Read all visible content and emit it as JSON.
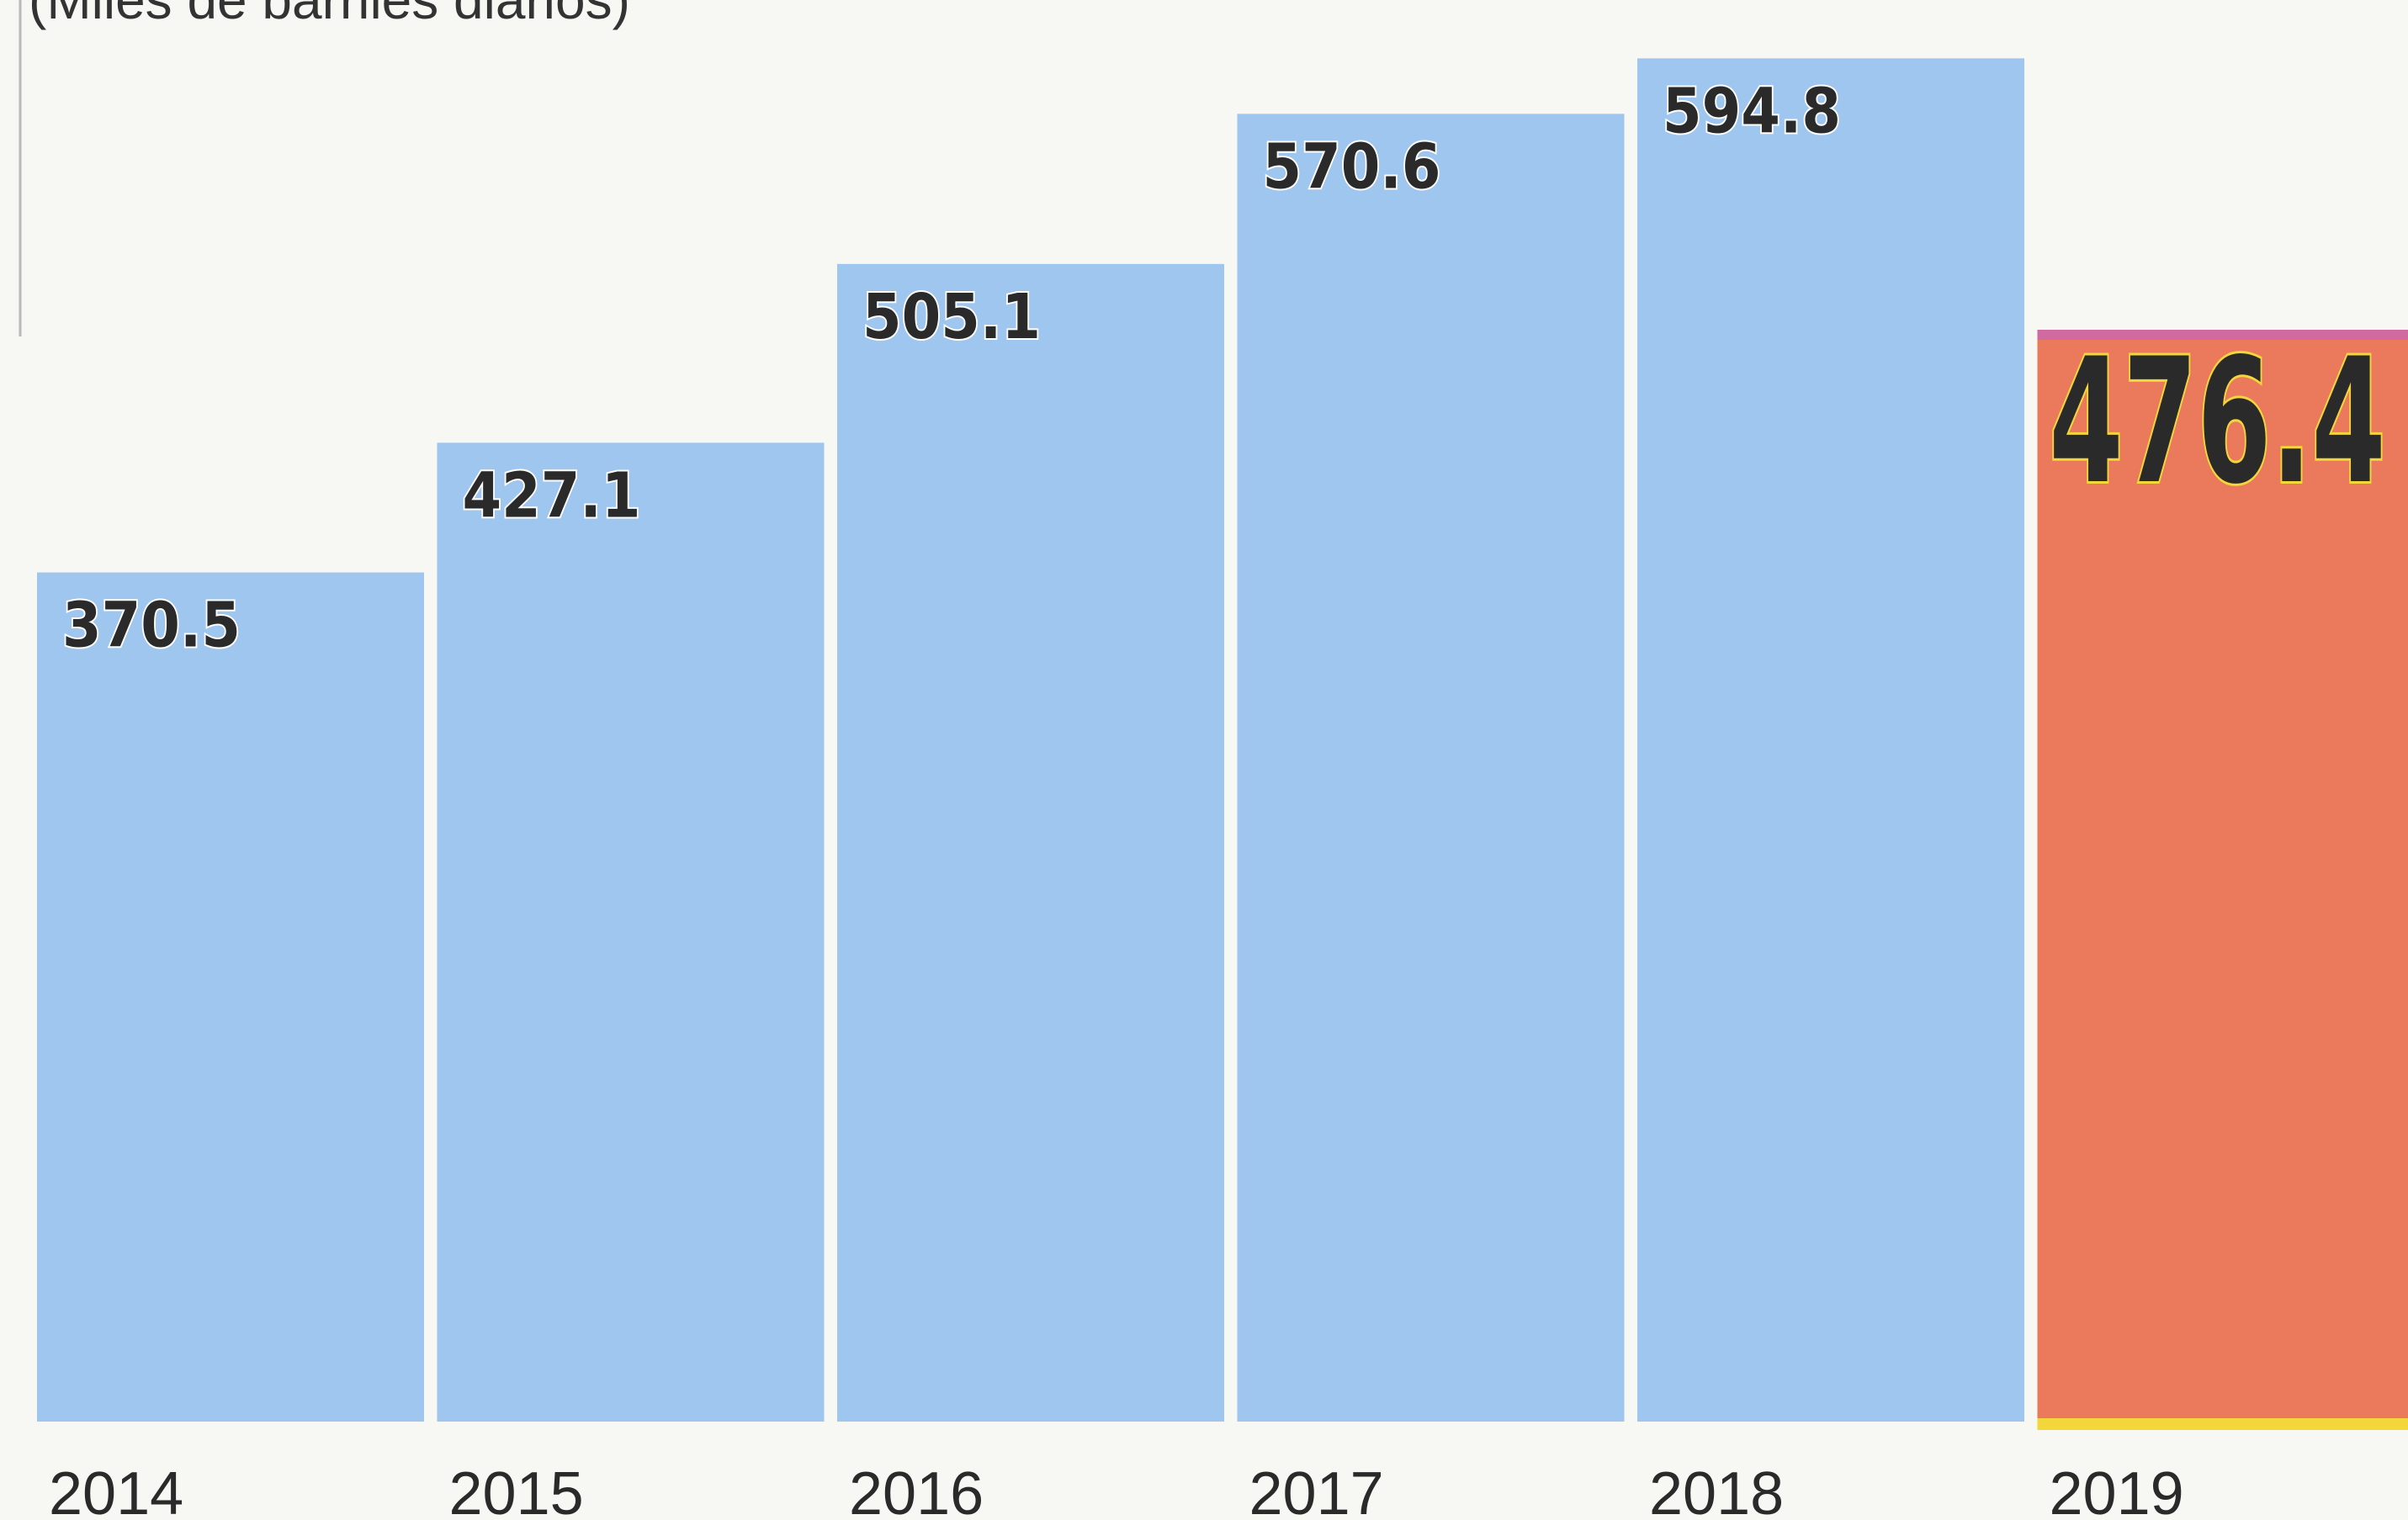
{
  "chart_data": {
    "type": "bar",
    "subtitle": "(Miles de barriles diarios)",
    "categories": [
      "2014",
      "2015",
      "2016",
      "2017",
      "2018",
      "2019"
    ],
    "values": [
      370.5,
      427.1,
      505.1,
      570.6,
      594.8,
      476.4
    ],
    "value_labels": [
      "370.5",
      "427.1",
      "505.1",
      "570.6",
      "594.8",
      "476.4"
    ],
    "highlight_index": 5,
    "ylim": [
      0,
      610
    ],
    "grid": false,
    "legend": "none",
    "colors": {
      "bar": "#9ec6ee",
      "highlight": "#ea7a5b",
      "highlight_top": "#d06aa0",
      "highlight_bottom": "#f3d63a",
      "highlight_label_outline": "#f3d63a",
      "label": "#2a2a2a"
    }
  }
}
